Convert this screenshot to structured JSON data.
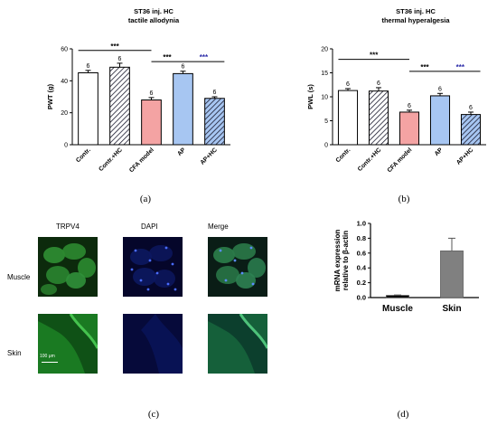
{
  "colors": {
    "white_bar": "#ffffff",
    "pink_bar": "#f4a3a3",
    "blue_bar": "#a7c6f2",
    "hatch_stroke": "#1a1a2e",
    "purple_star": "#2a2aa8",
    "gray_bar": "#808080",
    "green_stain": "#1f9a2a",
    "blue_stain": "#1a2f9a"
  },
  "chart_data": [
    {
      "id": "a",
      "type": "bar",
      "title": "ST36 inj. HC",
      "subtitle": "tactile allodynia",
      "ylabel": "PWT (g)",
      "xlabel": "",
      "ylim": [
        0,
        60
      ],
      "yticks": [
        "0",
        "20",
        "40",
        "60"
      ],
      "categories": [
        "Contr.",
        "Contr.+HC",
        "CFA model",
        "AP",
        "AP+HC"
      ],
      "values": [
        45,
        48.5,
        28,
        44.5,
        29
      ],
      "errors": [
        1.5,
        2.5,
        1.5,
        1.5,
        1
      ],
      "n_labels": [
        "6",
        "6",
        "6",
        "6",
        "6"
      ],
      "fills": [
        "white",
        "hatch-white",
        "pink",
        "blue",
        "hatch-blue"
      ],
      "significance": [
        {
          "from": 0,
          "to": 2,
          "label": "***",
          "color": "black",
          "level": 59
        },
        {
          "from": 2,
          "to": 3,
          "label": "***",
          "color": "black",
          "level": 52
        },
        {
          "from": 3,
          "to": 4,
          "label": "***",
          "color": "purple",
          "level": 52
        }
      ],
      "caption": "(a)"
    },
    {
      "id": "b",
      "type": "bar",
      "title": "ST36 inj. HC",
      "subtitle": "thermal hyperalgesia",
      "ylabel": "PWL (s)",
      "xlabel": "",
      "ylim": [
        0,
        20
      ],
      "yticks": [
        "0",
        "5",
        "10",
        "15",
        "20"
      ],
      "categories": [
        "Contr.",
        "Contr.+HC",
        "CFA model",
        "AP",
        "AP+HC"
      ],
      "values": [
        11.3,
        11.2,
        6.8,
        10.2,
        6.3
      ],
      "errors": [
        0.4,
        0.7,
        0.4,
        0.5,
        0.5
      ],
      "n_labels": [
        "6",
        "6",
        "6",
        "6",
        "6"
      ],
      "fills": [
        "white",
        "hatch-white",
        "pink",
        "blue",
        "hatch-blue"
      ],
      "significance": [
        {
          "from": 0,
          "to": 2,
          "label": "***",
          "color": "black",
          "level": 17.8
        },
        {
          "from": 2,
          "to": 3,
          "label": "***",
          "color": "black",
          "level": 15.3
        },
        {
          "from": 3,
          "to": 4,
          "label": "***",
          "color": "purple",
          "level": 15.3
        }
      ],
      "caption": "(b)"
    },
    {
      "id": "d",
      "type": "bar",
      "ylabel": "mRNA expression relative to β-actin",
      "ylabel_lines": [
        "mRNA expression",
        "relative to β-actin"
      ],
      "xlabel": "",
      "ylim": [
        0,
        1.0
      ],
      "yticks": [
        "0.0",
        "0.2",
        "0.4",
        "0.6",
        "0.8",
        "1.0"
      ],
      "categories": [
        "Muscle",
        "Skin"
      ],
      "values": [
        0.03,
        0.63
      ],
      "errors": [
        0.005,
        0.17
      ],
      "caption": "(d)"
    }
  ],
  "micrographs": {
    "column_labels": [
      "TRPV4",
      "DAPI",
      "Merge"
    ],
    "row_labels": [
      "Muscle",
      "Skin"
    ],
    "scale_bar": "100 μm",
    "caption": "(c)"
  }
}
